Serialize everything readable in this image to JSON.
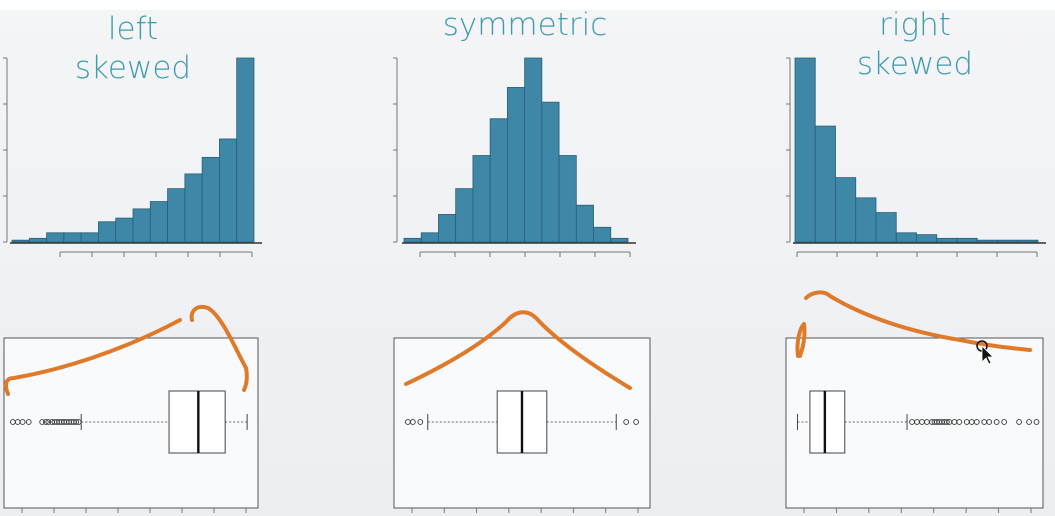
{
  "colors": {
    "bar_fill": "#3e87a6",
    "bar_stroke": "#2a5f76",
    "title_color": "#3f9ab0",
    "annotation_stroke": "#e07a2b",
    "box_stroke": "#555555"
  },
  "icons": [
    "mouse-cursor-icon"
  ],
  "chart_data": [
    {
      "type": "bar",
      "id": "left",
      "title_lines": [
        "left",
        "skewed"
      ],
      "values": [
        1,
        2,
        5,
        5,
        5,
        11,
        13,
        18,
        22,
        29,
        37,
        46,
        56,
        100
      ],
      "ylim": [
        0,
        100
      ],
      "boxplot": {
        "whisker_low": 0.3,
        "q1": 0.66,
        "median": 0.78,
        "q3": 0.89,
        "whisker_high": 0.98,
        "outliers": [
          0.02,
          0.04,
          0.06,
          0.085,
          0.14,
          0.155,
          0.165,
          0.18,
          0.19,
          0.2,
          0.21,
          0.22,
          0.23,
          0.24,
          0.25,
          0.26,
          0.27,
          0.28,
          0.29
        ]
      }
    },
    {
      "type": "bar",
      "id": "symmetric",
      "title_lines": [
        "symmetric"
      ],
      "values": [
        2,
        5,
        15,
        29,
        47,
        67,
        84,
        100,
        76,
        47,
        20,
        8,
        2
      ],
      "ylim": [
        0,
        100
      ],
      "boxplot": {
        "whisker_low": 0.12,
        "q1": 0.4,
        "median": 0.5,
        "q3": 0.6,
        "whisker_high": 0.88,
        "outliers": [
          0.04,
          0.06,
          0.09,
          0.92,
          0.96
        ]
      }
    },
    {
      "type": "bar",
      "id": "right",
      "title_lines": [
        "right",
        "skewed"
      ],
      "values": [
        100,
        63,
        35,
        24,
        16,
        5,
        4,
        2,
        2,
        1,
        1,
        1
      ],
      "ylim": [
        0,
        100
      ],
      "boxplot": {
        "whisker_low": 0.03,
        "q1": 0.08,
        "median": 0.14,
        "q3": 0.22,
        "whisker_high": 0.47,
        "outliers": [
          0.49,
          0.51,
          0.53,
          0.55,
          0.57,
          0.58,
          0.59,
          0.6,
          0.61,
          0.62,
          0.63,
          0.64,
          0.66,
          0.68,
          0.71,
          0.73,
          0.75,
          0.78,
          0.8,
          0.83,
          0.86,
          0.92,
          0.96,
          0.99
        ]
      }
    }
  ]
}
